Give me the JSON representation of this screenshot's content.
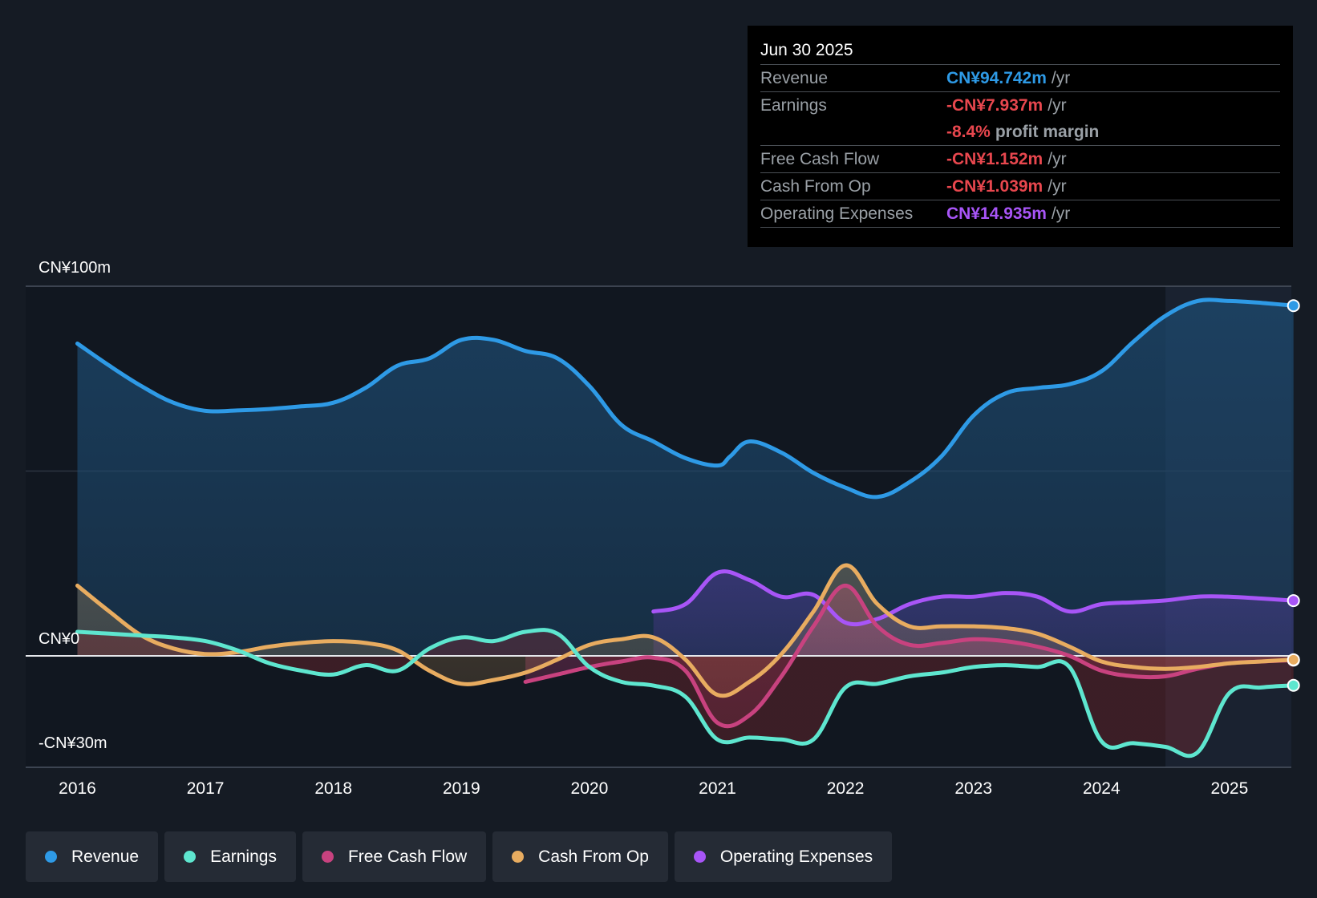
{
  "tooltip": {
    "date": "Jun 30 2025",
    "rows": [
      {
        "label": "Revenue",
        "value": "CN¥94.742m",
        "unit": "/yr",
        "color": "#2e9ae6"
      },
      {
        "label": "Earnings",
        "value": "-CN¥7.937m",
        "unit": "/yr",
        "color": "#e8474e"
      },
      {
        "label": "",
        "value": "-8.4%",
        "unit": "profit margin",
        "color": "#e8474e"
      },
      {
        "label": "Free Cash Flow",
        "value": "-CN¥1.152m",
        "unit": "/yr",
        "color": "#e8474e"
      },
      {
        "label": "Cash From Op",
        "value": "-CN¥1.039m",
        "unit": "/yr",
        "color": "#e8474e"
      },
      {
        "label": "Operating Expenses",
        "value": "CN¥14.935m",
        "unit": "/yr",
        "color": "#a855f7"
      }
    ]
  },
  "legend": [
    {
      "label": "Revenue",
      "color": "#2e9ae6"
    },
    {
      "label": "Earnings",
      "color": "#5ee6cf"
    },
    {
      "label": "Free Cash Flow",
      "color": "#c8427f"
    },
    {
      "label": "Cash From Op",
      "color": "#e8ac60"
    },
    {
      "label": "Operating Expenses",
      "color": "#a855f7"
    }
  ],
  "chart_data": {
    "type": "area",
    "title": "",
    "xlabel": "",
    "ylabel": "",
    "x_ticks": [
      2016,
      2017,
      2018,
      2019,
      2020,
      2021,
      2022,
      2023,
      2024,
      2025
    ],
    "y_labels": [
      {
        "value": 100,
        "text": "CN¥100m"
      },
      {
        "value": 0,
        "text": "CN¥0"
      },
      {
        "value": -30,
        "text": "-CN¥30m"
      }
    ],
    "ylim": [
      -30,
      100
    ],
    "xlim": [
      2015.6,
      2025.5
    ],
    "highlight_from": 2024.5,
    "series": [
      {
        "name": "Revenue",
        "color": "#2e9ae6",
        "fill": true,
        "points": [
          [
            2016.0,
            84.5
          ],
          [
            2016.25,
            78.5
          ],
          [
            2016.5,
            73.0
          ],
          [
            2016.75,
            68.5
          ],
          [
            2017.0,
            66.3
          ],
          [
            2017.25,
            66.4
          ],
          [
            2017.5,
            66.8
          ],
          [
            2017.75,
            67.5
          ],
          [
            2018.0,
            68.5
          ],
          [
            2018.25,
            72.5
          ],
          [
            2018.5,
            78.5
          ],
          [
            2018.75,
            80.5
          ],
          [
            2019.0,
            85.5
          ],
          [
            2019.25,
            85.5
          ],
          [
            2019.5,
            82.5
          ],
          [
            2019.75,
            80.5
          ],
          [
            2020.0,
            73.0
          ],
          [
            2020.25,
            62.5
          ],
          [
            2020.5,
            58.0
          ],
          [
            2020.75,
            53.5
          ],
          [
            2021.0,
            51.5
          ],
          [
            2021.1,
            54.0
          ],
          [
            2021.25,
            58.0
          ],
          [
            2021.5,
            55.0
          ],
          [
            2021.75,
            49.5
          ],
          [
            2022.0,
            45.5
          ],
          [
            2022.25,
            43.0
          ],
          [
            2022.5,
            47.0
          ],
          [
            2022.75,
            54.0
          ],
          [
            2023.0,
            65.0
          ],
          [
            2023.25,
            71.0
          ],
          [
            2023.5,
            72.5
          ],
          [
            2023.75,
            73.5
          ],
          [
            2024.0,
            77.0
          ],
          [
            2024.25,
            85.0
          ],
          [
            2024.5,
            92.0
          ],
          [
            2024.75,
            96.0
          ],
          [
            2025.0,
            96.0
          ],
          [
            2025.25,
            95.5
          ],
          [
            2025.5,
            94.742
          ]
        ]
      },
      {
        "name": "Operating Expenses",
        "color": "#a855f7",
        "fill": true,
        "points": [
          [
            2020.5,
            12.0
          ],
          [
            2020.75,
            14.0
          ],
          [
            2021.0,
            22.5
          ],
          [
            2021.25,
            20.5
          ],
          [
            2021.5,
            16.0
          ],
          [
            2021.75,
            16.5
          ],
          [
            2022.0,
            9.0
          ],
          [
            2022.25,
            10.0
          ],
          [
            2022.5,
            14.0
          ],
          [
            2022.75,
            16.0
          ],
          [
            2023.0,
            16.0
          ],
          [
            2023.25,
            17.0
          ],
          [
            2023.5,
            16.0
          ],
          [
            2023.75,
            12.0
          ],
          [
            2024.0,
            14.0
          ],
          [
            2024.25,
            14.5
          ],
          [
            2024.5,
            15.0
          ],
          [
            2024.75,
            16.0
          ],
          [
            2025.0,
            16.0
          ],
          [
            2025.25,
            15.5
          ],
          [
            2025.5,
            14.935
          ]
        ]
      },
      {
        "name": "Free Cash Flow",
        "color": "#c8427f",
        "fill": true,
        "points": [
          [
            2019.5,
            -7.0
          ],
          [
            2019.75,
            -5.0
          ],
          [
            2020.0,
            -3.0
          ],
          [
            2020.25,
            -1.5
          ],
          [
            2020.5,
            -0.5
          ],
          [
            2020.75,
            -4.0
          ],
          [
            2021.0,
            -18.0
          ],
          [
            2021.25,
            -16.0
          ],
          [
            2021.5,
            -5.5
          ],
          [
            2021.75,
            8.0
          ],
          [
            2022.0,
            19.0
          ],
          [
            2022.25,
            8.0
          ],
          [
            2022.5,
            3.0
          ],
          [
            2022.75,
            3.5
          ],
          [
            2023.0,
            4.5
          ],
          [
            2023.25,
            4.0
          ],
          [
            2023.5,
            2.5
          ],
          [
            2023.75,
            0.0
          ],
          [
            2024.0,
            -4.0
          ],
          [
            2024.25,
            -5.5
          ],
          [
            2024.5,
            -5.5
          ],
          [
            2024.75,
            -3.5
          ],
          [
            2025.0,
            -2.0
          ],
          [
            2025.25,
            -1.5
          ],
          [
            2025.5,
            -1.152
          ]
        ]
      },
      {
        "name": "Cash From Op",
        "color": "#e8ac60",
        "fill": true,
        "points": [
          [
            2016.0,
            19.0
          ],
          [
            2016.25,
            12.0
          ],
          [
            2016.5,
            5.5
          ],
          [
            2016.75,
            2.0
          ],
          [
            2017.0,
            0.5
          ],
          [
            2017.25,
            1.0
          ],
          [
            2017.5,
            2.5
          ],
          [
            2017.75,
            3.5
          ],
          [
            2018.0,
            4.0
          ],
          [
            2018.25,
            3.5
          ],
          [
            2018.5,
            1.5
          ],
          [
            2018.75,
            -4.0
          ],
          [
            2019.0,
            -7.5
          ],
          [
            2019.25,
            -6.5
          ],
          [
            2019.5,
            -4.5
          ],
          [
            2019.75,
            -1.0
          ],
          [
            2020.0,
            3.0
          ],
          [
            2020.25,
            4.5
          ],
          [
            2020.5,
            5.0
          ],
          [
            2020.75,
            -1.0
          ],
          [
            2021.0,
            -10.5
          ],
          [
            2021.25,
            -7.0
          ],
          [
            2021.5,
            0.5
          ],
          [
            2021.75,
            12.0
          ],
          [
            2022.0,
            24.5
          ],
          [
            2022.25,
            14.0
          ],
          [
            2022.5,
            8.0
          ],
          [
            2022.75,
            8.0
          ],
          [
            2023.0,
            8.0
          ],
          [
            2023.25,
            7.5
          ],
          [
            2023.5,
            6.0
          ],
          [
            2023.75,
            2.5
          ],
          [
            2024.0,
            -1.5
          ],
          [
            2024.25,
            -3.0
          ],
          [
            2024.5,
            -3.5
          ],
          [
            2024.75,
            -3.0
          ],
          [
            2025.0,
            -2.0
          ],
          [
            2025.25,
            -1.5
          ],
          [
            2025.5,
            -1.039
          ]
        ]
      },
      {
        "name": "Earnings",
        "color": "#5ee6cf",
        "fill": true,
        "points": [
          [
            2016.0,
            6.5
          ],
          [
            2016.25,
            6.0
          ],
          [
            2016.5,
            5.5
          ],
          [
            2016.75,
            5.0
          ],
          [
            2017.0,
            4.0
          ],
          [
            2017.25,
            1.5
          ],
          [
            2017.5,
            -2.0
          ],
          [
            2017.75,
            -4.0
          ],
          [
            2018.0,
            -5.0
          ],
          [
            2018.25,
            -2.5
          ],
          [
            2018.5,
            -4.0
          ],
          [
            2018.75,
            2.0
          ],
          [
            2019.0,
            5.0
          ],
          [
            2019.25,
            4.0
          ],
          [
            2019.5,
            6.5
          ],
          [
            2019.75,
            6.0
          ],
          [
            2020.0,
            -3.0
          ],
          [
            2020.25,
            -7.0
          ],
          [
            2020.5,
            -8.0
          ],
          [
            2020.75,
            -11.0
          ],
          [
            2021.0,
            -22.5
          ],
          [
            2021.25,
            -22.0
          ],
          [
            2021.5,
            -22.5
          ],
          [
            2021.75,
            -22.5
          ],
          [
            2022.0,
            -8.5
          ],
          [
            2022.25,
            -7.5
          ],
          [
            2022.5,
            -5.5
          ],
          [
            2022.75,
            -4.5
          ],
          [
            2023.0,
            -3.0
          ],
          [
            2023.25,
            -2.5
          ],
          [
            2023.5,
            -3.0
          ],
          [
            2023.75,
            -3.0
          ],
          [
            2024.0,
            -23.0
          ],
          [
            2024.25,
            -23.5
          ],
          [
            2024.5,
            -24.5
          ],
          [
            2024.75,
            -26.0
          ],
          [
            2025.0,
            -10.0
          ],
          [
            2025.25,
            -8.5
          ],
          [
            2025.5,
            -7.937
          ]
        ]
      }
    ]
  }
}
